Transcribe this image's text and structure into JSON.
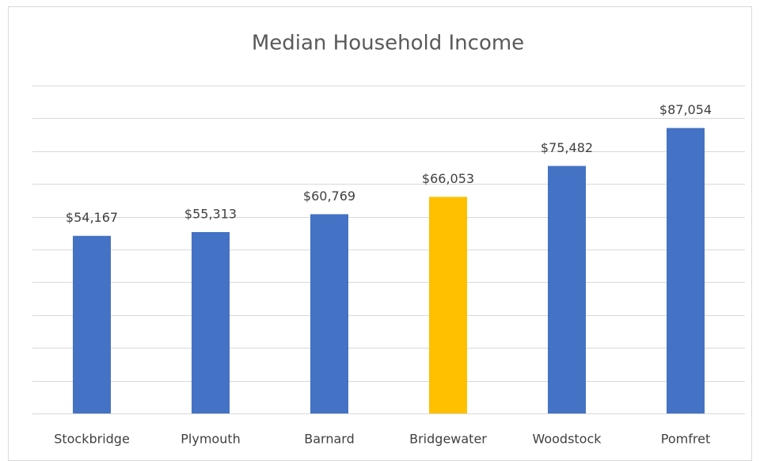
{
  "chart_data": {
    "type": "bar",
    "title": "Median Household Income",
    "categories": [
      "Stockbridge",
      "Plymouth",
      "Barnard",
      "Bridgewater",
      "Woodstock",
      "Pomfret"
    ],
    "values": [
      54167,
      55313,
      60769,
      66053,
      75482,
      87054
    ],
    "value_labels": [
      "$54,167",
      "$55,313",
      "$60,769",
      "$66,053",
      "$75,482",
      "$87,054"
    ],
    "colors": [
      "#4472c4",
      "#4472c4",
      "#4472c4",
      "#ffc000",
      "#4472c4",
      "#4472c4"
    ],
    "ylim": [
      0,
      100000
    ],
    "yticks": [
      0,
      10000,
      20000,
      30000,
      40000,
      50000,
      60000,
      70000,
      80000,
      90000,
      100000
    ],
    "grid": true
  }
}
